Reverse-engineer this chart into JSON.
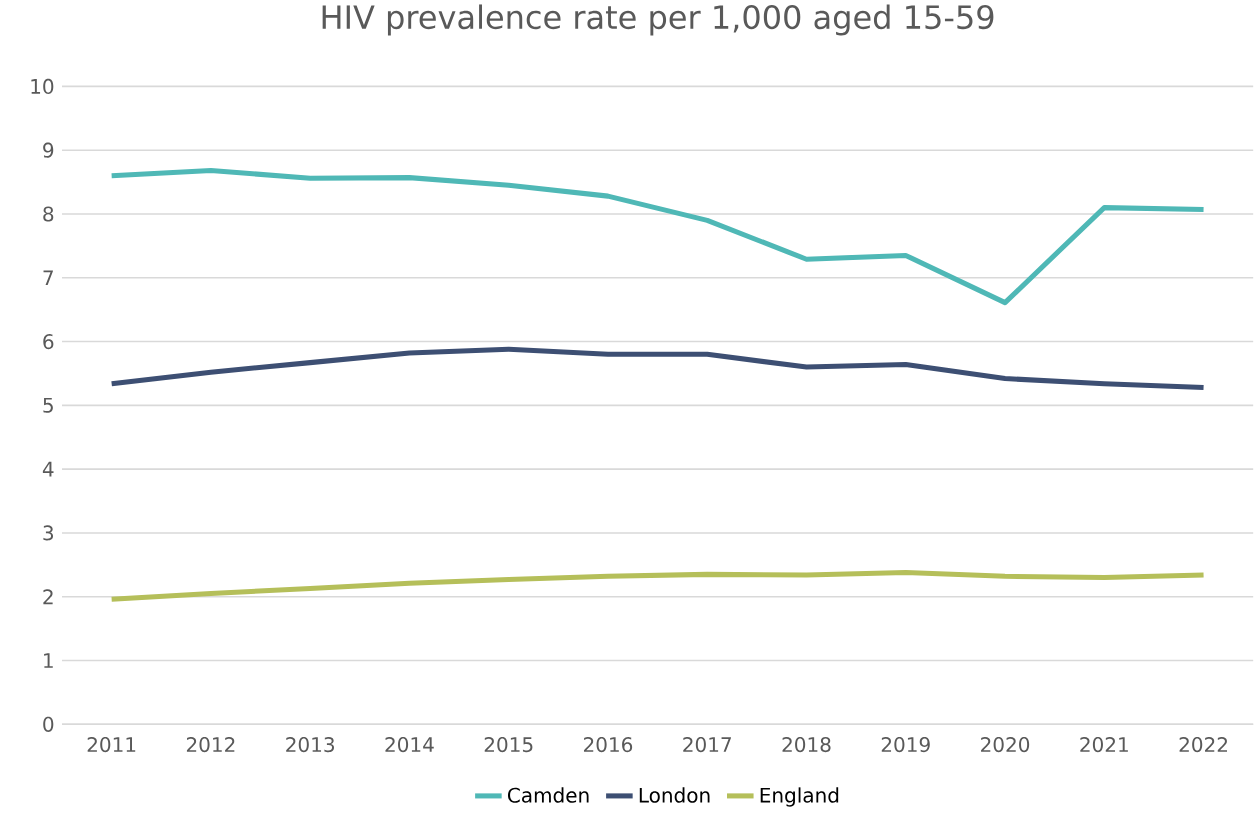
{
  "chart_data": {
    "type": "line",
    "title": "HIV prevalence rate per 1,000 aged 15-59",
    "categories": [
      "2011",
      "2012",
      "2013",
      "2014",
      "2015",
      "2016",
      "2017",
      "2018",
      "2019",
      "2020",
      "2021",
      "2022"
    ],
    "series": [
      {
        "name": "Camden",
        "color": "#4fb8b6",
        "values": [
          8.6,
          8.68,
          8.56,
          8.57,
          8.45,
          8.28,
          7.9,
          7.29,
          7.35,
          6.61,
          8.1,
          8.07
        ]
      },
      {
        "name": "London",
        "color": "#3d4f73",
        "values": [
          5.34,
          5.52,
          5.67,
          5.82,
          5.88,
          5.8,
          5.8,
          5.6,
          5.64,
          5.42,
          5.34,
          5.28
        ]
      },
      {
        "name": "England",
        "color": "#b5bf5a",
        "values": [
          1.96,
          2.05,
          2.13,
          2.21,
          2.27,
          2.32,
          2.35,
          2.34,
          2.38,
          2.32,
          2.3,
          2.34
        ]
      }
    ],
    "ylim": [
      0,
      10
    ],
    "yticks": [
      0,
      1,
      2,
      3,
      4,
      5,
      6,
      7,
      8,
      9,
      10
    ],
    "grid": "y",
    "legend": "bottom",
    "marker": "none",
    "line_style": "solid"
  }
}
